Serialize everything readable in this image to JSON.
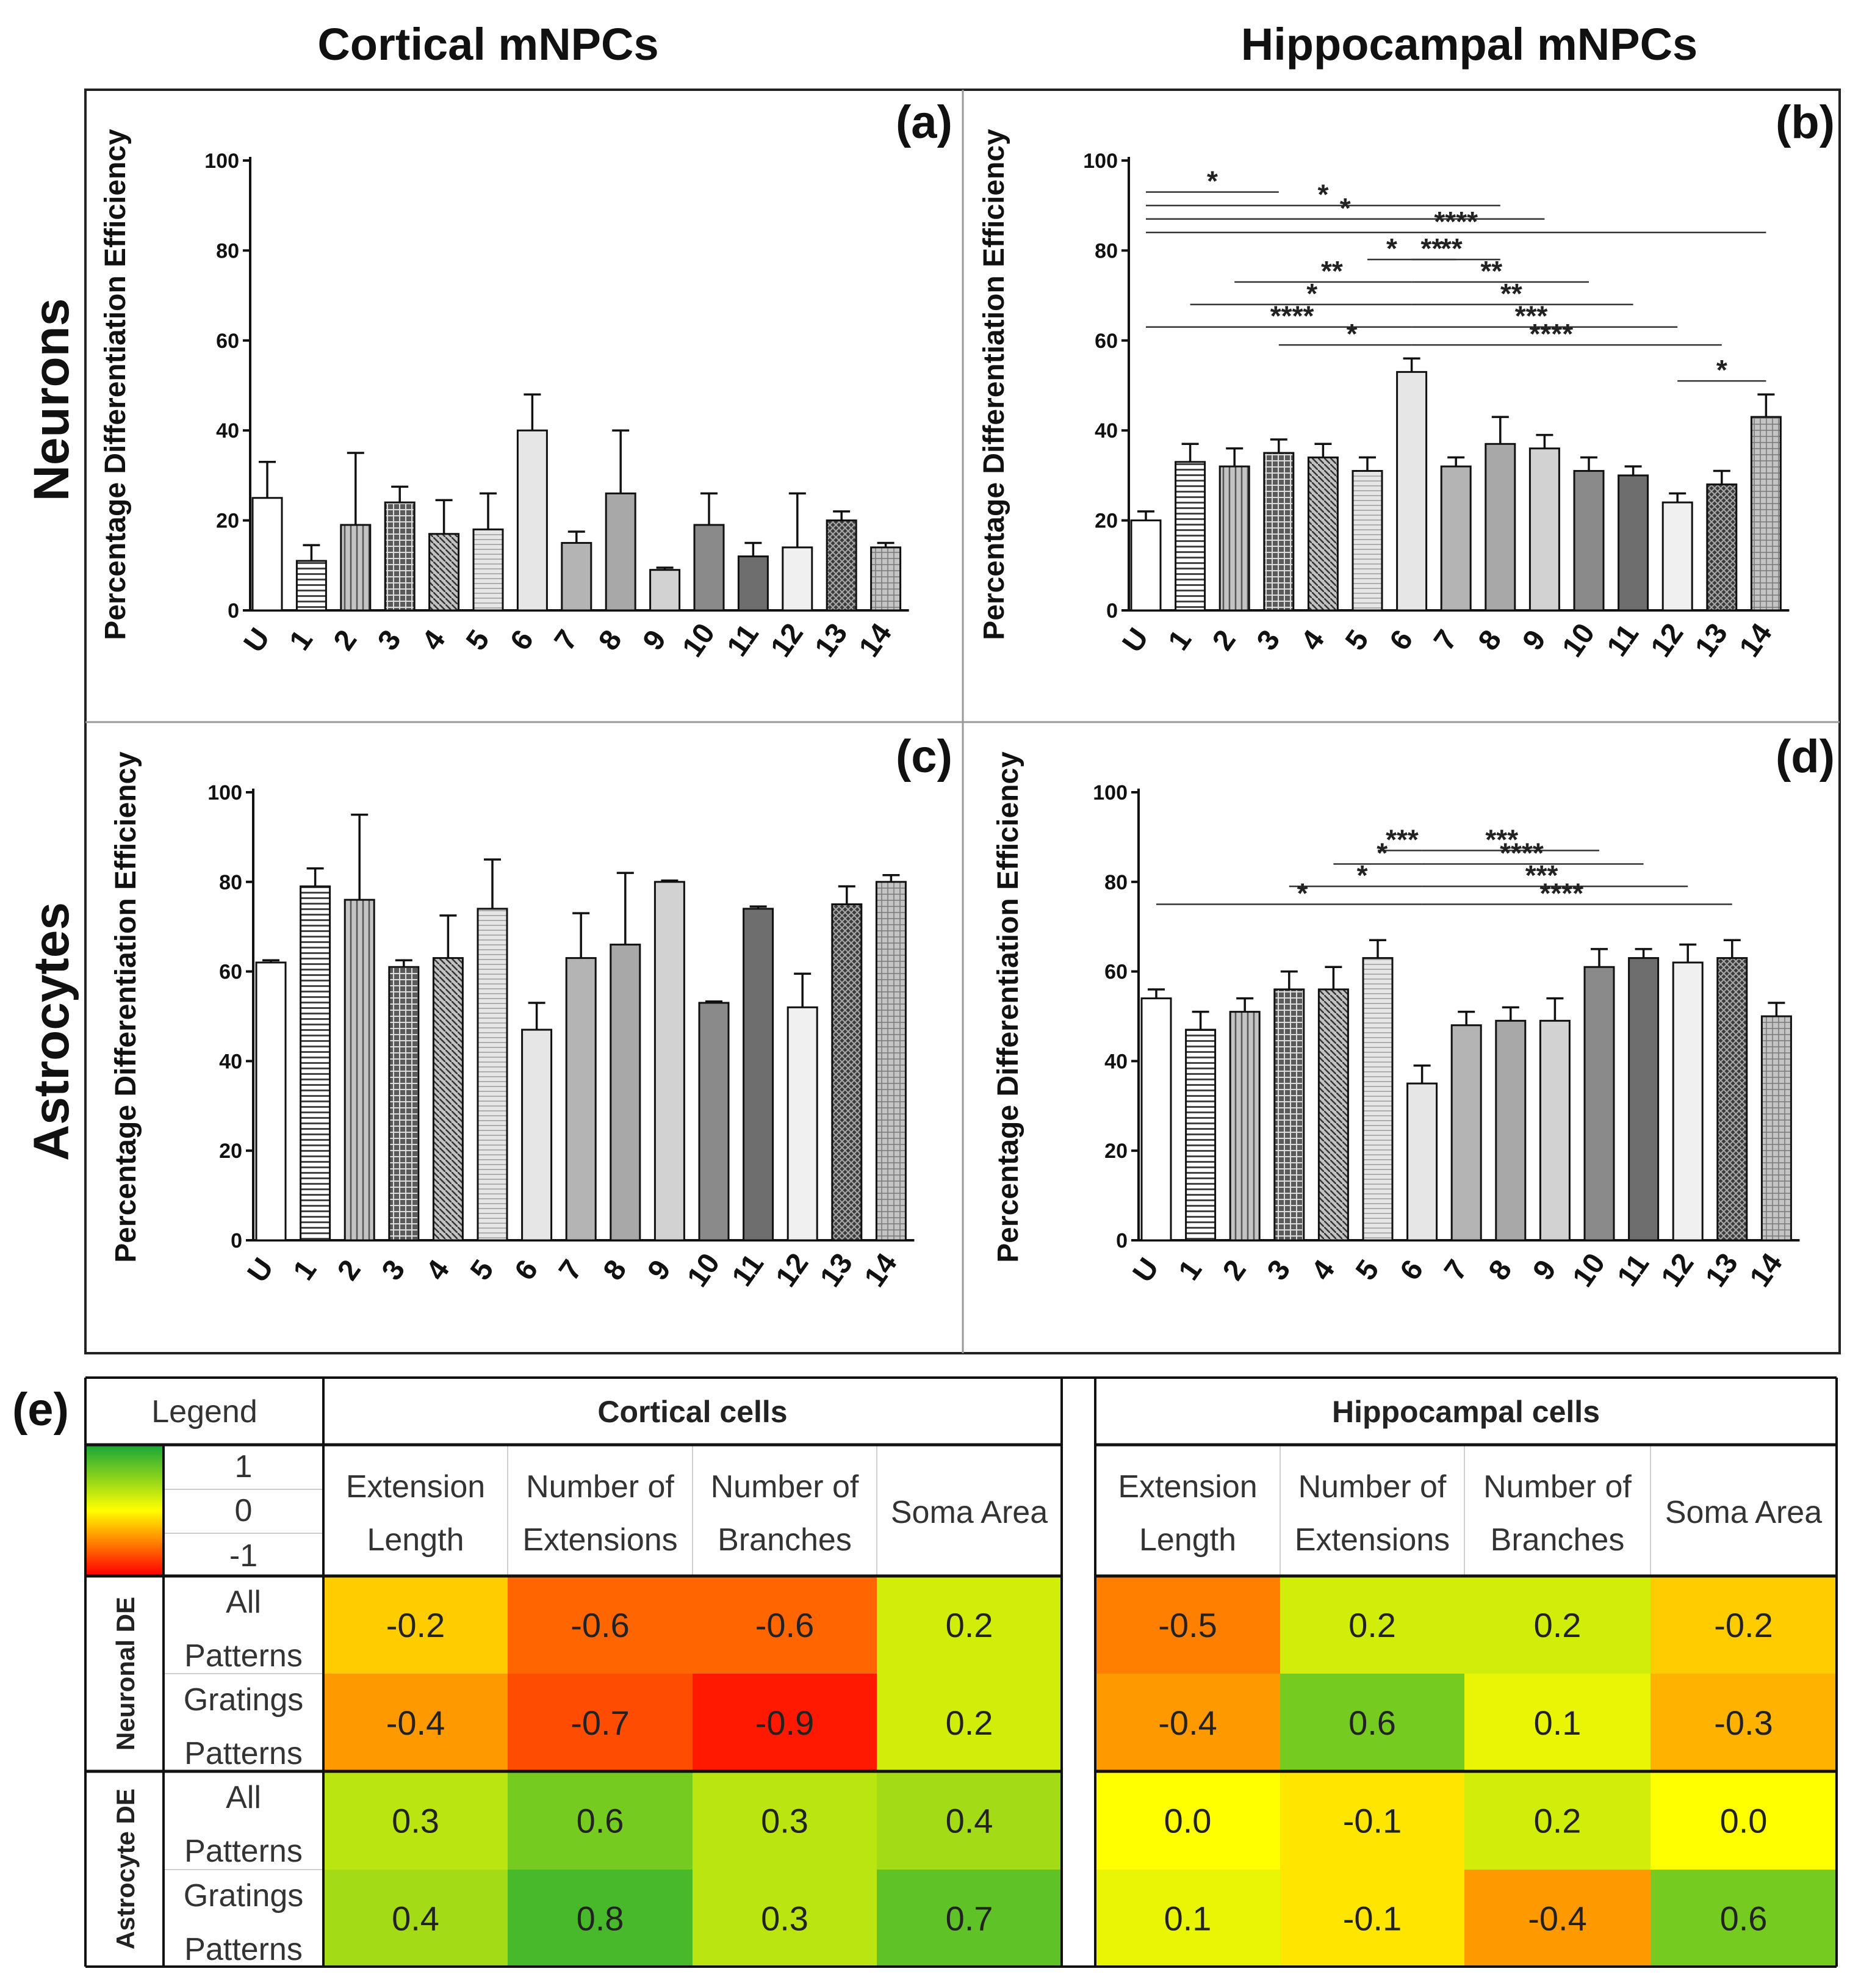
{
  "column_titles": {
    "cortical": "Cortical mNPCs",
    "hippocampal": "Hippocampal mNPCs"
  },
  "row_titles": {
    "neurons": "Neurons",
    "astrocytes": "Astrocytes"
  },
  "panel_labels": [
    "(a)",
    "(b)",
    "(c)",
    "(d)",
    "(e)"
  ],
  "fill_colors": [
    "#ffffff",
    "#dcdcdc",
    "#c8c8c8",
    "#5a5a5a",
    "#c4c4c4",
    "#e2e2e2",
    "#e6e6e6",
    "#b4b4b4",
    "#a8a8a8",
    "#d2d2d2",
    "#8a8a8a",
    "#6e6e6e",
    "#f0f0f0",
    "#3c3c3c",
    "#c0c0c0"
  ],
  "chart_data": [
    {
      "type": "bar",
      "panel": "(a)",
      "title": "Cortical mNPCs - Neurons",
      "ylabel": "Percentage Differentiation Efficiency",
      "xlabel": "",
      "ylim": [
        0,
        100
      ],
      "yticks": [
        "0",
        "20",
        "40",
        "60",
        "80",
        "100"
      ],
      "categories": [
        "U",
        "1",
        "2",
        "3",
        "4",
        "5",
        "6",
        "7",
        "8",
        "9",
        "10",
        "11",
        "12",
        "13",
        "14"
      ],
      "values": [
        25,
        11,
        19,
        24,
        17,
        18,
        40,
        15,
        26,
        9,
        19,
        12,
        14,
        20,
        14
      ],
      "errors": [
        8,
        3.5,
        16,
        3.5,
        7.5,
        8,
        8,
        2.5,
        14,
        0.5,
        7,
        3,
        12,
        2,
        1
      ],
      "significance": []
    },
    {
      "type": "bar",
      "panel": "(b)",
      "title": "Hippocampal mNPCs - Neurons",
      "ylabel": "Percentage Differentiation Efficiency",
      "xlabel": "",
      "ylim": [
        0,
        100
      ],
      "yticks": [
        "0",
        "20",
        "40",
        "60",
        "80",
        "100"
      ],
      "categories": [
        "U",
        "1",
        "2",
        "3",
        "4",
        "5",
        "6",
        "7",
        "8",
        "9",
        "10",
        "11",
        "12",
        "13",
        "14"
      ],
      "values": [
        20,
        33,
        32,
        35,
        34,
        31,
        53,
        32,
        37,
        36,
        31,
        30,
        24,
        28,
        43
      ],
      "errors": [
        2,
        4,
        4,
        3,
        3,
        3,
        3,
        2,
        6,
        3,
        3,
        2,
        2,
        3,
        5
      ],
      "significance": [
        {
          "from": 0,
          "to": 3,
          "label": "*",
          "y": 93
        },
        {
          "from": 0,
          "to": 8,
          "label": "*",
          "y": 90
        },
        {
          "from": 0,
          "to": 9,
          "label": "*",
          "y": 87
        },
        {
          "from": 0,
          "to": 14,
          "label": "****",
          "y": 84
        },
        {
          "from": 5,
          "to": 6,
          "label": "*",
          "y": 78
        },
        {
          "from": 2,
          "to": 6,
          "label": "**",
          "y": 73
        },
        {
          "from": 1,
          "to": 6,
          "label": "*",
          "y": 68
        },
        {
          "from": 0,
          "to": 6,
          "label": "****",
          "y": 63
        },
        {
          "from": 3,
          "to": 6,
          "label": "*",
          "y": 59
        },
        {
          "from": 6,
          "to": 7,
          "label": "**",
          "y": 78
        },
        {
          "from": 6,
          "to": 8,
          "label": "**",
          "y": 78
        },
        {
          "from": 6,
          "to": 10,
          "label": "**",
          "y": 73
        },
        {
          "from": 6,
          "to": 11,
          "label": "**",
          "y": 68
        },
        {
          "from": 6,
          "to": 12,
          "label": "***",
          "y": 63
        },
        {
          "from": 6,
          "to": 13,
          "label": "****",
          "y": 59
        },
        {
          "from": 12,
          "to": 14,
          "label": "*",
          "y": 51
        }
      ]
    },
    {
      "type": "bar",
      "panel": "(c)",
      "title": "Cortical mNPCs - Astrocytes",
      "ylabel": "Percentage Differentiation Efficiency",
      "xlabel": "",
      "ylim": [
        0,
        100
      ],
      "yticks": [
        "0",
        "20",
        "40",
        "60",
        "80",
        "100"
      ],
      "categories": [
        "U",
        "1",
        "2",
        "3",
        "4",
        "5",
        "6",
        "7",
        "8",
        "9",
        "10",
        "11",
        "12",
        "13",
        "14"
      ],
      "values": [
        62,
        79,
        76,
        61,
        63,
        74,
        47,
        63,
        66,
        80,
        53,
        74,
        52,
        75,
        80
      ],
      "errors": [
        0.5,
        4,
        19,
        1.5,
        9.5,
        11,
        6,
        10,
        16,
        0.3,
        0.3,
        0.5,
        7.5,
        4,
        1.5
      ],
      "significance": []
    },
    {
      "type": "bar",
      "panel": "(d)",
      "title": "Hippocampal mNPCs - Astrocytes",
      "ylabel": "Percentage Differentiation Efficiency",
      "xlabel": "",
      "ylim": [
        0,
        100
      ],
      "yticks": [
        "0",
        "20",
        "40",
        "60",
        "80",
        "100"
      ],
      "categories": [
        "U",
        "1",
        "2",
        "3",
        "4",
        "5",
        "6",
        "7",
        "8",
        "9",
        "10",
        "11",
        "12",
        "13",
        "14"
      ],
      "values": [
        54,
        47,
        51,
        56,
        56,
        63,
        35,
        48,
        49,
        49,
        61,
        63,
        62,
        63,
        50
      ],
      "errors": [
        2,
        4,
        3,
        4,
        5,
        4,
        4,
        3,
        3,
        5,
        4,
        2,
        4,
        4,
        3
      ],
      "significance": [
        {
          "from": 5,
          "to": 6,
          "label": "***",
          "y": 87
        },
        {
          "from": 4,
          "to": 6,
          "label": "*",
          "y": 84
        },
        {
          "from": 3,
          "to": 6,
          "label": "*",
          "y": 79
        },
        {
          "from": 0,
          "to": 6,
          "label": "*",
          "y": 75
        },
        {
          "from": 6,
          "to": 10,
          "label": "***",
          "y": 87
        },
        {
          "from": 6,
          "to": 11,
          "label": "****",
          "y": 84
        },
        {
          "from": 6,
          "to": 12,
          "label": "***",
          "y": 79
        },
        {
          "from": 6,
          "to": 13,
          "label": "****",
          "y": 75
        }
      ]
    },
    {
      "type": "heatmap",
      "panel": "(e)",
      "title": "",
      "legend": {
        "title": "Legend",
        "levels": [
          "1",
          "0",
          "-1"
        ]
      },
      "groups": [
        "Cortical cells",
        "Hippocampal cells"
      ],
      "columns": [
        [
          "Extension",
          "Length"
        ],
        [
          "Number of",
          "Extensions"
        ],
        [
          "Number of",
          "Branches"
        ],
        [
          "Soma Area",
          ""
        ]
      ],
      "row_groups": [
        "Neuronal DE",
        "Astrocyte DE"
      ],
      "rows": [
        [
          "All",
          "Patterns"
        ],
        [
          "Gratings",
          "Patterns"
        ],
        [
          "All",
          "Patterns"
        ],
        [
          "Gratings",
          "Patterns"
        ]
      ],
      "cortical_labels": [
        [
          "-0.2",
          "-0.6",
          "-0.6",
          "0.2"
        ],
        [
          "-0.4",
          "-0.7",
          "-0.9",
          "0.2"
        ],
        [
          "0.3",
          "0.6",
          "0.3",
          "0.4"
        ],
        [
          "0.4",
          "0.8",
          "0.3",
          "0.7"
        ]
      ],
      "hippocampal_labels": [
        [
          "-0.5",
          "0.2",
          "0.2",
          "-0.2"
        ],
        [
          "-0.4",
          "0.6",
          "0.1",
          "-0.3"
        ],
        [
          "0.0",
          "-0.1",
          "0.2",
          "0.0"
        ],
        [
          "0.1",
          "-0.1",
          "-0.4",
          "0.6"
        ]
      ]
    }
  ]
}
